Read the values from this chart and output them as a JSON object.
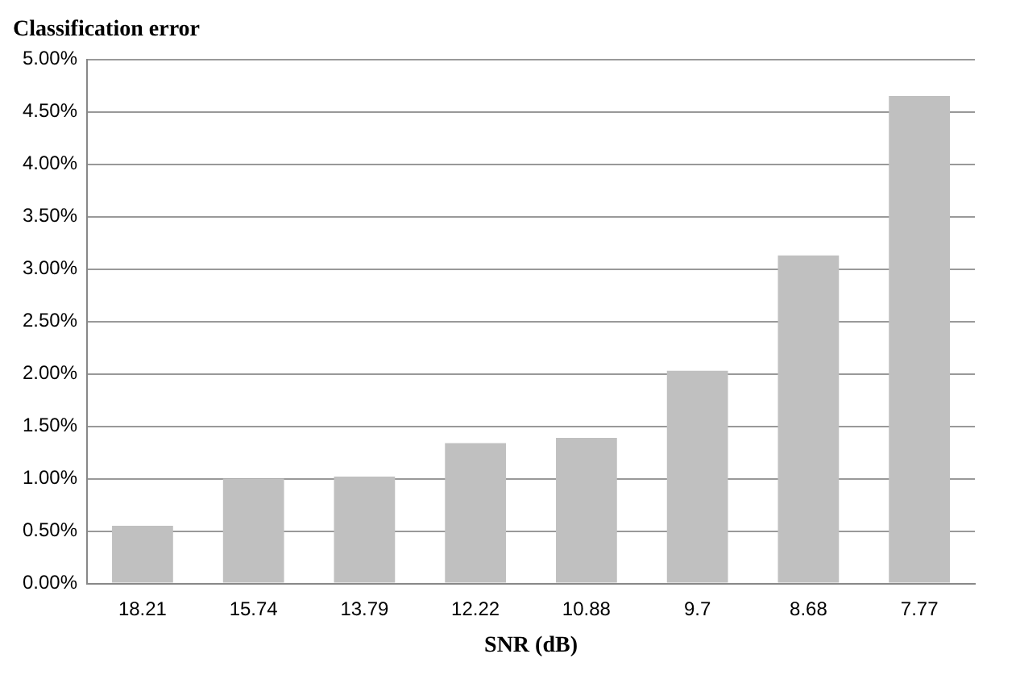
{
  "chart_data": {
    "type": "bar",
    "ylabel": "Classification error",
    "xlabel": "SNR (dB)",
    "categories": [
      "18.21",
      "15.74",
      "13.79",
      "12.22",
      "10.88",
      "9.7",
      "8.68",
      "7.77"
    ],
    "values": [
      0.55,
      1.0,
      1.02,
      1.34,
      1.39,
      2.03,
      3.13,
      4.65
    ],
    "color": "#c0c0c0",
    "ylim": [
      0,
      5
    ],
    "yticks": [
      {
        "value": 0,
        "label": "0.00%"
      },
      {
        "value": 0.5,
        "label": "0.50%"
      },
      {
        "value": 1,
        "label": "1.00%"
      },
      {
        "value": 1.5,
        "label": "1.50%"
      },
      {
        "value": 2,
        "label": "2.00%"
      },
      {
        "value": 2.5,
        "label": "2.50%"
      },
      {
        "value": 3,
        "label": "3.00%"
      },
      {
        "value": 3.5,
        "label": "3.50%"
      },
      {
        "value": 4,
        "label": "4.00%"
      },
      {
        "value": 4.5,
        "label": "4.50%"
      },
      {
        "value": 5,
        "label": "5.00%"
      }
    ],
    "grid": "y",
    "legend": false
  }
}
